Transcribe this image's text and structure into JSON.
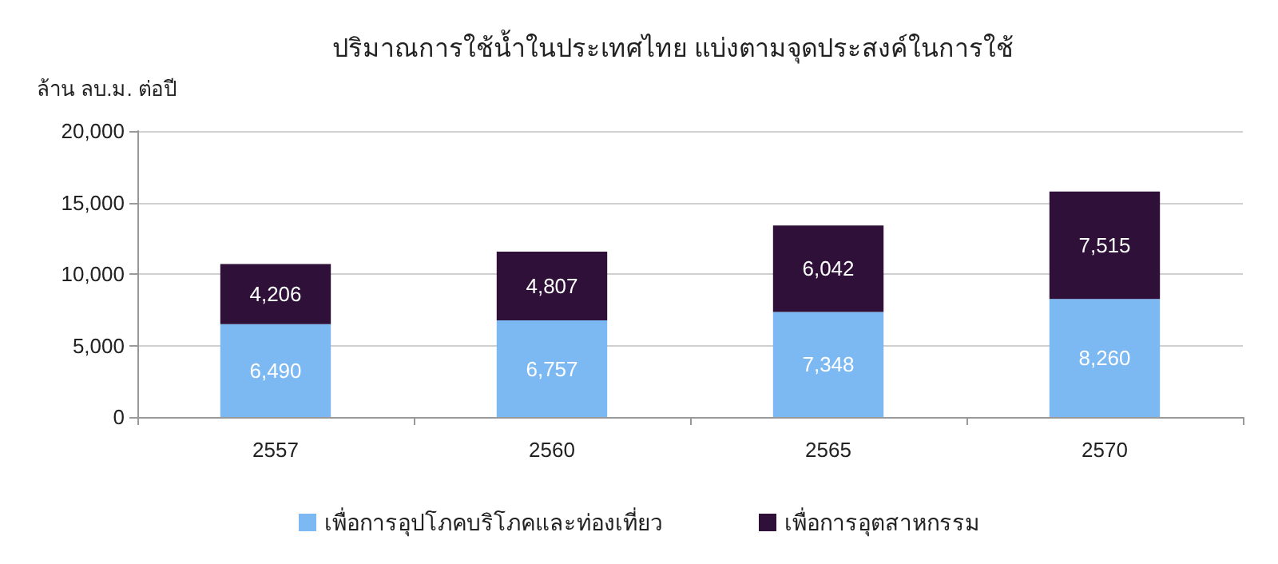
{
  "chart_data": {
    "type": "bar",
    "title": "ปริมาณการใช้น้ำในประเทศไทย แบ่งตามจุดประสงค์ในการใช้",
    "ylabel": "ล้าน ลบ.ม. ต่อปี",
    "categories": [
      "2557",
      "2560",
      "2565",
      "2570"
    ],
    "stacked": true,
    "series": [
      {
        "name": "เพื่อการอุปโภคบริโภคและท่องเที่ยว",
        "color": "#7cb9f2",
        "values": [
          6490,
          6757,
          7348,
          8260
        ],
        "value_labels": [
          "6,490",
          "6,757",
          "7,348",
          "8,260"
        ]
      },
      {
        "name": "เพื่อการอุตสาหกรรม",
        "color": "#2e1038",
        "values": [
          4206,
          4807,
          6042,
          7515
        ],
        "value_labels": [
          "4,206",
          "4,807",
          "6,042",
          "7,515"
        ]
      }
    ],
    "ylim": [
      0,
      20000
    ],
    "yticks": [
      0,
      {
        "value": 5000,
        "label": "5,000"
      },
      {
        "value": 10000,
        "label": "10,000"
      },
      {
        "value": 15000,
        "label": "15,000"
      },
      {
        "value": 20000,
        "label": "20,000"
      }
    ],
    "grid": "y",
    "legend": "bottom"
  }
}
